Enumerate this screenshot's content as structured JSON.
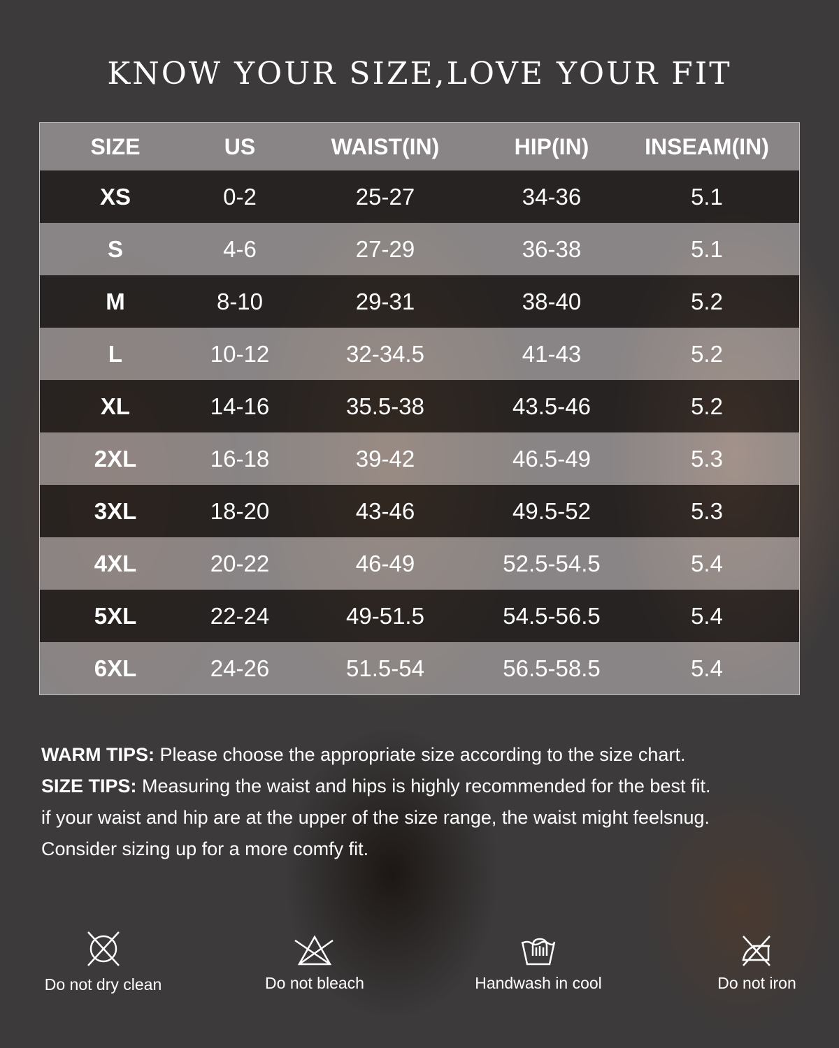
{
  "title": "KNOW YOUR SIZE,LOVE YOUR FIT",
  "table": {
    "headers": [
      "SIZE",
      "US",
      "WAIST(IN)",
      "HIP(IN)",
      "INSEAM(IN)"
    ],
    "rows": [
      [
        "XS",
        "0-2",
        "25-27",
        "34-36",
        "5.1"
      ],
      [
        "S",
        "4-6",
        "27-29",
        "36-38",
        "5.1"
      ],
      [
        "M",
        "8-10",
        "29-31",
        "38-40",
        "5.2"
      ],
      [
        "L",
        "10-12",
        "32-34.5",
        "41-43",
        "5.2"
      ],
      [
        "XL",
        "14-16",
        "35.5-38",
        "43.5-46",
        "5.2"
      ],
      [
        "2XL",
        "16-18",
        "39-42",
        "46.5-49",
        "5.3"
      ],
      [
        "3XL",
        "18-20",
        "43-46",
        "49.5-52",
        "5.3"
      ],
      [
        "4XL",
        "20-22",
        "46-49",
        "52.5-54.5",
        "5.4"
      ],
      [
        "5XL",
        "22-24",
        "49-51.5",
        "54.5-56.5",
        "5.4"
      ],
      [
        "6XL",
        "24-26",
        "51.5-54",
        "56.5-58.5",
        "5.4"
      ]
    ]
  },
  "tips": {
    "warm_label": "WARM TIPS:",
    "warm_text": " Please choose the appropriate size according to the size chart.",
    "size_label": "SIZE TIPS:",
    "size_text": " Measuring the waist and hips is highly recommended for the best fit.",
    "line3": "if your waist and hip are at the upper of the size range, the waist might feelsnug.",
    "line4": "Consider sizing up for a more comfy fit."
  },
  "care": [
    {
      "icon": "no-dry-clean-icon",
      "label": "Do not dry clean"
    },
    {
      "icon": "no-bleach-icon",
      "label": "Do not bleach"
    },
    {
      "icon": "handwash-icon",
      "label": "Handwash in cool"
    },
    {
      "icon": "no-iron-icon",
      "label": "Do not iron"
    }
  ]
}
